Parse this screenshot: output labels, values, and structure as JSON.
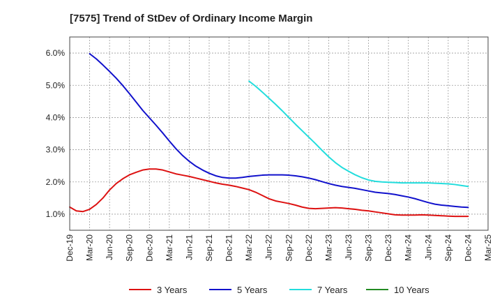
{
  "chart_data": {
    "type": "line",
    "title": "[7575]  Trend of StDev of Ordinary Income Margin",
    "xlabel": "",
    "ylabel": "",
    "ylim": [
      0.5,
      6.5
    ],
    "yticks": [
      1.0,
      2.0,
      3.0,
      4.0,
      5.0,
      6.0
    ],
    "ytick_labels": [
      "1.0%",
      "2.0%",
      "3.0%",
      "4.0%",
      "5.0%",
      "6.0%"
    ],
    "x_labels": [
      "Dec-19",
      "Mar-20",
      "Jun-20",
      "Sep-20",
      "Dec-20",
      "Mar-21",
      "Jun-21",
      "Sep-21",
      "Dec-21",
      "Mar-22",
      "Jun-22",
      "Sep-22",
      "Dec-22",
      "Mar-23",
      "Jun-23",
      "Sep-23",
      "Dec-23",
      "Mar-24",
      "Jun-24",
      "Sep-24",
      "Dec-24",
      "Mar-25"
    ],
    "grid": true,
    "legend_position": "bottom",
    "series": [
      {
        "name": "3 Years",
        "color": "#dd1111",
        "points": [
          [
            "Dec-19",
            1.22
          ],
          [
            "Jan-20",
            1.1
          ],
          [
            "Feb-20",
            1.08
          ],
          [
            "Mar-20",
            1.15
          ],
          [
            "Apr-20",
            1.3
          ],
          [
            "May-20",
            1.5
          ],
          [
            "Jun-20",
            1.75
          ],
          [
            "Jul-20",
            1.95
          ],
          [
            "Aug-20",
            2.1
          ],
          [
            "Sep-20",
            2.22
          ],
          [
            "Oct-20",
            2.3
          ],
          [
            "Nov-20",
            2.37
          ],
          [
            "Dec-20",
            2.4
          ],
          [
            "Jan-21",
            2.4
          ],
          [
            "Feb-21",
            2.37
          ],
          [
            "Mar-21",
            2.31
          ],
          [
            "Apr-21",
            2.25
          ],
          [
            "May-21",
            2.21
          ],
          [
            "Jun-21",
            2.17
          ],
          [
            "Jul-21",
            2.12
          ],
          [
            "Aug-21",
            2.07
          ],
          [
            "Sep-21",
            2.02
          ],
          [
            "Oct-21",
            1.97
          ],
          [
            "Nov-21",
            1.93
          ],
          [
            "Dec-21",
            1.9
          ],
          [
            "Jan-22",
            1.86
          ],
          [
            "Feb-22",
            1.81
          ],
          [
            "Mar-22",
            1.76
          ],
          [
            "Apr-22",
            1.68
          ],
          [
            "May-22",
            1.58
          ],
          [
            "Jun-22",
            1.48
          ],
          [
            "Jul-22",
            1.41
          ],
          [
            "Aug-22",
            1.37
          ],
          [
            "Sep-22",
            1.33
          ],
          [
            "Oct-22",
            1.28
          ],
          [
            "Nov-22",
            1.22
          ],
          [
            "Dec-22",
            1.18
          ],
          [
            "Jan-23",
            1.17
          ],
          [
            "Feb-23",
            1.18
          ],
          [
            "Mar-23",
            1.19
          ],
          [
            "Apr-23",
            1.2
          ],
          [
            "May-23",
            1.19
          ],
          [
            "Jun-23",
            1.17
          ],
          [
            "Jul-23",
            1.15
          ],
          [
            "Aug-23",
            1.12
          ],
          [
            "Sep-23",
            1.1
          ],
          [
            "Oct-23",
            1.07
          ],
          [
            "Nov-23",
            1.04
          ],
          [
            "Dec-23",
            1.01
          ],
          [
            "Jan-24",
            0.98
          ],
          [
            "Feb-24",
            0.97
          ],
          [
            "Mar-24",
            0.97
          ],
          [
            "Apr-24",
            0.97
          ],
          [
            "May-24",
            0.98
          ],
          [
            "Jun-24",
            0.97
          ],
          [
            "Jul-24",
            0.96
          ],
          [
            "Aug-24",
            0.95
          ],
          [
            "Sep-24",
            0.94
          ],
          [
            "Oct-24",
            0.93
          ],
          [
            "Nov-24",
            0.93
          ],
          [
            "Dec-24",
            0.93
          ]
        ]
      },
      {
        "name": "5 Years",
        "color": "#1111cc",
        "points": [
          [
            "Mar-20",
            5.98
          ],
          [
            "Apr-20",
            5.82
          ],
          [
            "May-20",
            5.63
          ],
          [
            "Jun-20",
            5.43
          ],
          [
            "Jul-20",
            5.22
          ],
          [
            "Aug-20",
            4.99
          ],
          [
            "Sep-20",
            4.74
          ],
          [
            "Oct-20",
            4.48
          ],
          [
            "Nov-20",
            4.22
          ],
          [
            "Dec-20",
            3.99
          ],
          [
            "Jan-21",
            3.76
          ],
          [
            "Feb-21",
            3.52
          ],
          [
            "Mar-21",
            3.27
          ],
          [
            "Apr-21",
            3.03
          ],
          [
            "May-21",
            2.82
          ],
          [
            "Jun-21",
            2.64
          ],
          [
            "Jul-21",
            2.49
          ],
          [
            "Aug-21",
            2.37
          ],
          [
            "Sep-21",
            2.27
          ],
          [
            "Oct-21",
            2.19
          ],
          [
            "Nov-21",
            2.14
          ],
          [
            "Dec-21",
            2.12
          ],
          [
            "Jan-22",
            2.12
          ],
          [
            "Feb-22",
            2.14
          ],
          [
            "Mar-22",
            2.17
          ],
          [
            "Apr-22",
            2.19
          ],
          [
            "May-22",
            2.21
          ],
          [
            "Jun-22",
            2.22
          ],
          [
            "Jul-22",
            2.22
          ],
          [
            "Aug-22",
            2.22
          ],
          [
            "Sep-22",
            2.21
          ],
          [
            "Oct-22",
            2.19
          ],
          [
            "Nov-22",
            2.16
          ],
          [
            "Dec-22",
            2.12
          ],
          [
            "Jan-23",
            2.07
          ],
          [
            "Feb-23",
            2.01
          ],
          [
            "Mar-23",
            1.95
          ],
          [
            "Apr-23",
            1.9
          ],
          [
            "May-23",
            1.86
          ],
          [
            "Jun-23",
            1.83
          ],
          [
            "Jul-23",
            1.8
          ],
          [
            "Aug-23",
            1.76
          ],
          [
            "Sep-23",
            1.72
          ],
          [
            "Oct-23",
            1.68
          ],
          [
            "Nov-23",
            1.66
          ],
          [
            "Dec-23",
            1.64
          ],
          [
            "Jan-24",
            1.61
          ],
          [
            "Feb-24",
            1.57
          ],
          [
            "Mar-24",
            1.53
          ],
          [
            "Apr-24",
            1.48
          ],
          [
            "May-24",
            1.42
          ],
          [
            "Jun-24",
            1.36
          ],
          [
            "Jul-24",
            1.31
          ],
          [
            "Aug-24",
            1.28
          ],
          [
            "Sep-24",
            1.26
          ],
          [
            "Oct-24",
            1.24
          ],
          [
            "Nov-24",
            1.22
          ],
          [
            "Dec-24",
            1.21
          ]
        ]
      },
      {
        "name": "7 Years",
        "color": "#22dddd",
        "points": [
          [
            "Mar-22",
            5.13
          ],
          [
            "Apr-22",
            4.97
          ],
          [
            "May-22",
            4.79
          ],
          [
            "Jun-22",
            4.6
          ],
          [
            "Jul-22",
            4.41
          ],
          [
            "Aug-22",
            4.21
          ],
          [
            "Sep-22",
            4.0
          ],
          [
            "Oct-22",
            3.79
          ],
          [
            "Nov-22",
            3.59
          ],
          [
            "Dec-22",
            3.39
          ],
          [
            "Jan-23",
            3.19
          ],
          [
            "Feb-23",
            2.98
          ],
          [
            "Mar-23",
            2.78
          ],
          [
            "Apr-23",
            2.6
          ],
          [
            "May-23",
            2.45
          ],
          [
            "Jun-23",
            2.33
          ],
          [
            "Jul-23",
            2.22
          ],
          [
            "Aug-23",
            2.13
          ],
          [
            "Sep-23",
            2.06
          ],
          [
            "Oct-23",
            2.02
          ],
          [
            "Nov-23",
            2.0
          ],
          [
            "Dec-23",
            1.99
          ],
          [
            "Jan-24",
            1.98
          ],
          [
            "Feb-24",
            1.97
          ],
          [
            "Mar-24",
            1.97
          ],
          [
            "Apr-24",
            1.97
          ],
          [
            "May-24",
            1.97
          ],
          [
            "Jun-24",
            1.97
          ],
          [
            "Jul-24",
            1.96
          ],
          [
            "Aug-24",
            1.95
          ],
          [
            "Sep-24",
            1.94
          ],
          [
            "Oct-24",
            1.92
          ],
          [
            "Nov-24",
            1.89
          ],
          [
            "Dec-24",
            1.86
          ]
        ]
      },
      {
        "name": "10 Years",
        "color": "#228b22",
        "points": []
      }
    ]
  }
}
